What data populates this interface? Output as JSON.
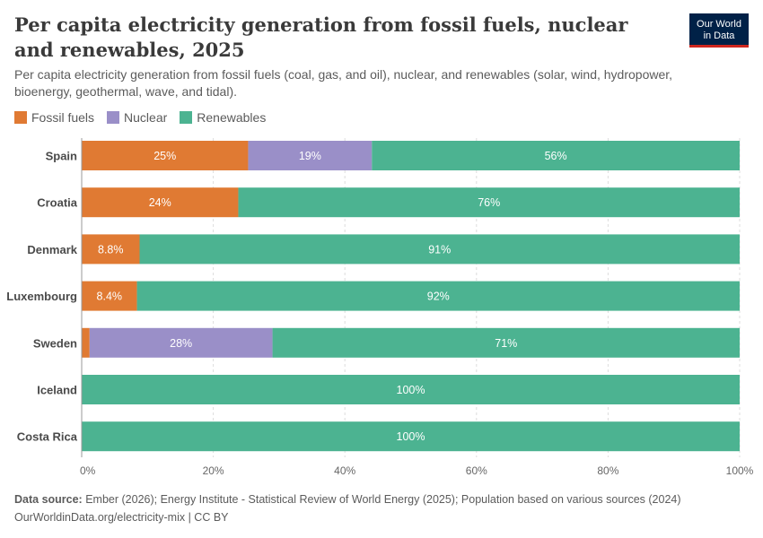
{
  "header": {
    "title": "Per capita electricity generation from fossil fuels, nuclear and renewables, 2025",
    "subtitle": "Per capita electricity generation from fossil fuels (coal, gas, and oil), nuclear, and renewables (solar, wind, hydropower, bioenergy, geothermal, wave, and tidal).",
    "logo_line1": "Our World",
    "logo_line2": "in Data"
  },
  "legend": [
    {
      "label": "Fossil fuels",
      "color": "#e07a33"
    },
    {
      "label": "Nuclear",
      "color": "#9a8fc8"
    },
    {
      "label": "Renewables",
      "color": "#4cb391"
    }
  ],
  "chart_data": {
    "type": "bar",
    "orientation": "horizontal",
    "stacked": true,
    "categories": [
      "Spain",
      "Croatia",
      "Denmark",
      "Luxembourg",
      "Sweden",
      "Iceland",
      "Costa Rica"
    ],
    "series": [
      {
        "name": "Fossil fuels",
        "color": "#e07a33",
        "values": [
          25.3,
          23.8,
          8.8,
          8.4,
          1.2,
          0,
          0
        ],
        "labels": [
          "25%",
          "24%",
          "8.8%",
          "8.4%",
          "",
          "",
          ""
        ]
      },
      {
        "name": "Nuclear",
        "color": "#9a8fc8",
        "values": [
          18.8,
          0,
          0,
          0,
          27.8,
          0,
          0
        ],
        "labels": [
          "19%",
          "",
          "",
          "",
          "28%",
          "",
          ""
        ]
      },
      {
        "name": "Renewables",
        "color": "#4cb391",
        "values": [
          55.9,
          76.2,
          91.2,
          91.6,
          71.0,
          100,
          100
        ],
        "labels": [
          "56%",
          "76%",
          "91%",
          "92%",
          "71%",
          "100%",
          "100%"
        ]
      }
    ],
    "xlim": [
      0,
      100
    ],
    "x_ticks": [
      "0%",
      "20%",
      "40%",
      "60%",
      "80%",
      "100%"
    ],
    "grid": "vertical dashed",
    "legend_position": "top-left"
  },
  "footer": {
    "source_label": "Data source:",
    "source_text": "Ember (2026); Energy Institute - Statistical Review of World Energy (2025); Population based on various sources (2024)",
    "url_text": "OurWorldinData.org/electricity-mix | CC BY"
  }
}
